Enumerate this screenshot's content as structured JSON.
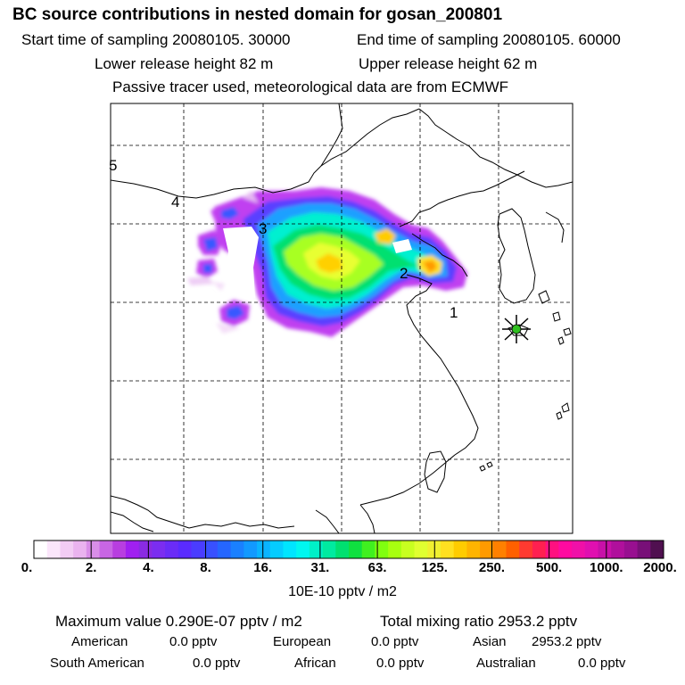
{
  "title": "BC  source contributions in nested domain for gosan_200801",
  "sampling": {
    "start": "Start time of sampling 20080105. 30000",
    "end": "End time of sampling 20080105. 60000"
  },
  "release": {
    "lower": "Lower release height   82 m",
    "upper": "Upper release height   62 m"
  },
  "note": "Passive tracer used, meteorological data are from ECMWF",
  "map": {
    "markers": [
      "1",
      "2",
      "3",
      "4",
      "5"
    ],
    "receptor": "star-marker"
  },
  "colorbar": {
    "labels": [
      "0.",
      "2.",
      "4.",
      "8.",
      "16.",
      "31.",
      "63.",
      "125.",
      "250.",
      "500.",
      "1000.",
      "2000."
    ],
    "colors": [
      "#ffffff",
      "#fbe6fb",
      "#f2ccf4",
      "#eab3ef",
      "#d98ee8",
      "#c866e4",
      "#b83ee0",
      "#a020f0",
      "#8a2be2",
      "#7b2df0",
      "#6a2cf7",
      "#5a2bff",
      "#4a3cff",
      "#3850ff",
      "#2566ff",
      "#1a80ff",
      "#1299ff",
      "#0ab4ff",
      "#05ccff",
      "#00e5ff",
      "#00f7f0",
      "#00f0c8",
      "#00eaa0",
      "#00e070",
      "#10e040",
      "#40f020",
      "#80ff10",
      "#a8ff10",
      "#c8ff20",
      "#e0ff30",
      "#f0f030",
      "#ffe020",
      "#ffcc00",
      "#ffb400",
      "#ff9a00",
      "#ff8000",
      "#ff6000",
      "#ff3a30",
      "#ff2050",
      "#ff1080",
      "#ff0aa0",
      "#f010a8",
      "#e010b0",
      "#c810a8",
      "#b0109c",
      "#981090",
      "#781078",
      "#501050"
    ],
    "unit": "10E-10 pptv / m2"
  },
  "summary": {
    "max_value": "Maximum value  0.290E-07 pptv / m2",
    "total": "Total mixing ratio     2953.2 pptv"
  },
  "regions": [
    {
      "name": "American",
      "value": "0.0 pptv"
    },
    {
      "name": "European",
      "value": "0.0 pptv"
    },
    {
      "name": "Asian",
      "value": "2953.2 pptv"
    },
    {
      "name": "South American",
      "value": "0.0 pptv"
    },
    {
      "name": "African",
      "value": "0.0 pptv"
    },
    {
      "name": "Australian",
      "value": "0.0 pptv"
    }
  ]
}
